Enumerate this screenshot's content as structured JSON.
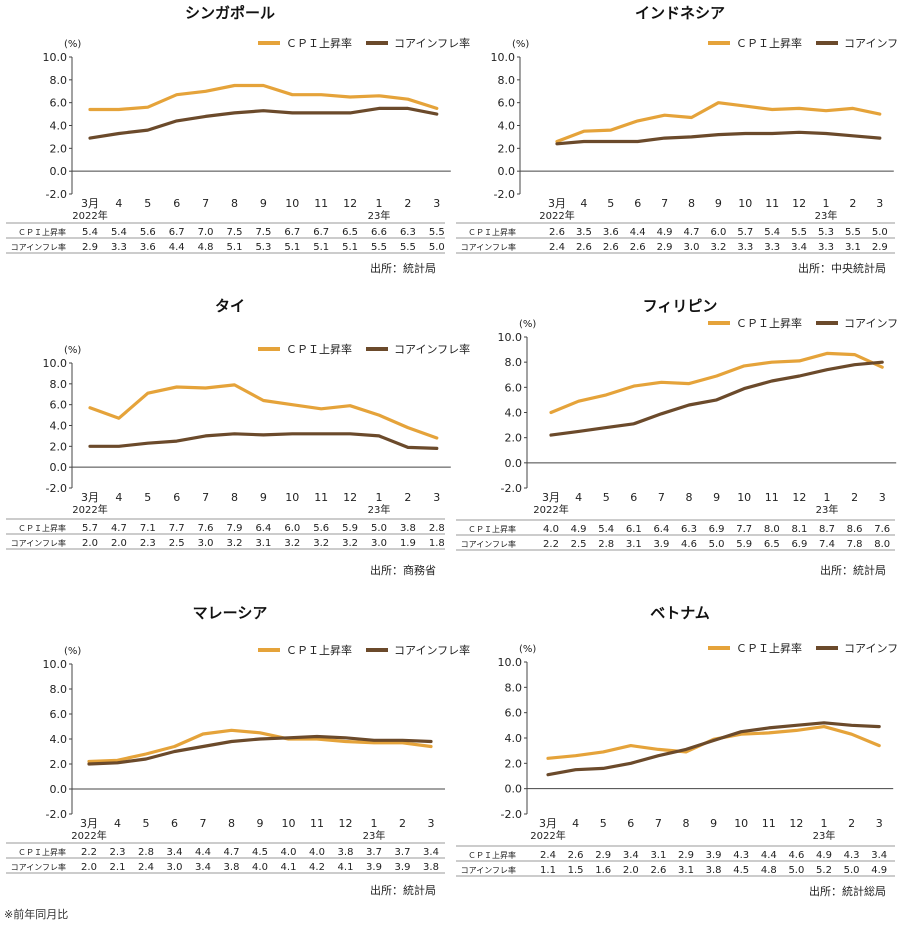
{
  "footnote": "※前年同月比",
  "legend_cpi": "ＣＰＩ上昇率",
  "legend_core": "コアインフレ率",
  "row_label_cpi": "ＣＰＩ上昇率",
  "row_label_core": "コアインフレ率",
  "unit": "(%)",
  "colors": {
    "cpi": "#e5a33a",
    "core": "#6b4a2b",
    "axis": "#444444"
  },
  "chart_data": [
    {
      "type": "line",
      "title": "シンガポール",
      "x": [
        "3月",
        "4",
        "5",
        "6",
        "7",
        "8",
        "9",
        "10",
        "11",
        "12",
        "1",
        "2",
        "3"
      ],
      "x_year_labels": [
        {
          "at": 0,
          "label": "2022年"
        },
        {
          "at": 10,
          "label": "23年"
        }
      ],
      "ylim": [
        -2.0,
        10.0
      ],
      "yticks": [
        "10.0",
        "8.0",
        "6.0",
        "4.0",
        "2.0",
        "0.0",
        "-2.0"
      ],
      "series": [
        {
          "name": "ＣＰＩ上昇率",
          "values": [
            5.4,
            5.4,
            5.6,
            6.7,
            7.0,
            7.5,
            7.5,
            6.7,
            6.7,
            6.5,
            6.6,
            6.3,
            5.5
          ]
        },
        {
          "name": "コアインフレ率",
          "values": [
            2.9,
            3.3,
            3.6,
            4.4,
            4.8,
            5.1,
            5.3,
            5.1,
            5.1,
            5.1,
            5.5,
            5.5,
            5.0
          ]
        }
      ],
      "source": "出所：統計局"
    },
    {
      "type": "line",
      "title": "インドネシア",
      "x": [
        "3月",
        "4",
        "5",
        "6",
        "7",
        "8",
        "9",
        "10",
        "11",
        "12",
        "1",
        "2",
        "3"
      ],
      "x_year_labels": [
        {
          "at": 0,
          "label": "2022年"
        },
        {
          "at": 10,
          "label": "23年"
        }
      ],
      "ylim": [
        -2.0,
        10.0
      ],
      "yticks": [
        "10.0",
        "8.0",
        "6.0",
        "4.0",
        "2.0",
        "0.0",
        "-2.0"
      ],
      "series": [
        {
          "name": "ＣＰＩ上昇率",
          "values": [
            2.6,
            3.5,
            3.6,
            4.4,
            4.9,
            4.7,
            6.0,
            5.7,
            5.4,
            5.5,
            5.3,
            5.5,
            5.0
          ]
        },
        {
          "name": "コアインフレ率",
          "values": [
            2.4,
            2.6,
            2.6,
            2.6,
            2.9,
            3.0,
            3.2,
            3.3,
            3.3,
            3.4,
            3.3,
            3.1,
            2.9
          ]
        }
      ],
      "source": "出所：中央統計局"
    },
    {
      "type": "line",
      "title": "タイ",
      "x": [
        "3月",
        "4",
        "5",
        "6",
        "7",
        "8",
        "9",
        "10",
        "11",
        "12",
        "1",
        "2",
        "3"
      ],
      "x_year_labels": [
        {
          "at": 0,
          "label": "2022年"
        },
        {
          "at": 10,
          "label": "23年"
        }
      ],
      "ylim": [
        -2.0,
        10.0
      ],
      "yticks": [
        "10.0",
        "8.0",
        "6.0",
        "4.0",
        "2.0",
        "0.0",
        "-2.0"
      ],
      "series": [
        {
          "name": "ＣＰＩ上昇率",
          "values": [
            5.7,
            4.7,
            7.1,
            7.7,
            7.6,
            7.9,
            6.4,
            6.0,
            5.6,
            5.9,
            5.0,
            3.8,
            2.8
          ]
        },
        {
          "name": "コアインフレ率",
          "values": [
            2.0,
            2.0,
            2.3,
            2.5,
            3.0,
            3.2,
            3.1,
            3.2,
            3.2,
            3.2,
            3.0,
            1.9,
            1.8
          ]
        }
      ],
      "source": "出所：商務省"
    },
    {
      "type": "line",
      "title": "フィリピン",
      "x": [
        "3月",
        "4",
        "5",
        "6",
        "7",
        "8",
        "9",
        "10",
        "11",
        "12",
        "1",
        "2",
        "3"
      ],
      "x_year_labels": [
        {
          "at": 0,
          "label": "2022年"
        },
        {
          "at": 10,
          "label": "23年"
        }
      ],
      "ylim": [
        -2.0,
        10.0
      ],
      "yticks": [
        "10.0",
        "8.0",
        "6.0",
        "4.0",
        "2.0",
        "0.0",
        "-2.0"
      ],
      "series": [
        {
          "name": "ＣＰＩ上昇率",
          "values": [
            4.0,
            4.9,
            5.4,
            6.1,
            6.4,
            6.3,
            6.9,
            7.7,
            8.0,
            8.1,
            8.7,
            8.6,
            7.6
          ]
        },
        {
          "name": "コアインフレ率",
          "values": [
            2.2,
            2.5,
            2.8,
            3.1,
            3.9,
            4.6,
            5.0,
            5.9,
            6.5,
            6.9,
            7.4,
            7.8,
            8.0
          ]
        }
      ],
      "source": "出所：統計局"
    },
    {
      "type": "line",
      "title": "マレーシア",
      "x": [
        "3月",
        "4",
        "5",
        "6",
        "7",
        "8",
        "9",
        "10",
        "11",
        "12",
        "1",
        "2",
        "3"
      ],
      "x_year_labels": [
        {
          "at": 0,
          "label": "2022年"
        },
        {
          "at": 10,
          "label": "23年"
        }
      ],
      "ylim": [
        -2.0,
        10.0
      ],
      "yticks": [
        "10.0",
        "8.0",
        "6.0",
        "4.0",
        "2.0",
        "0.0",
        "-2.0"
      ],
      "series": [
        {
          "name": "ＣＰＩ上昇率",
          "values": [
            2.2,
            2.3,
            2.8,
            3.4,
            4.4,
            4.7,
            4.5,
            4.0,
            4.0,
            3.8,
            3.7,
            3.7,
            3.4
          ]
        },
        {
          "name": "コアインフレ率",
          "values": [
            2.0,
            2.1,
            2.4,
            3.0,
            3.4,
            3.8,
            4.0,
            4.1,
            4.2,
            4.1,
            3.9,
            3.9,
            3.8
          ]
        }
      ],
      "source": "出所：統計局"
    },
    {
      "type": "line",
      "title": "ベトナム",
      "x": [
        "3月",
        "4",
        "5",
        "6",
        "7",
        "8",
        "9",
        "10",
        "11",
        "12",
        "1",
        "2",
        "3"
      ],
      "x_year_labels": [
        {
          "at": 0,
          "label": "2022年"
        },
        {
          "at": 10,
          "label": "23年"
        }
      ],
      "ylim": [
        -2.0,
        10.0
      ],
      "yticks": [
        "10.0",
        "8.0",
        "6.0",
        "4.0",
        "2.0",
        "0.0",
        "-2.0"
      ],
      "series": [
        {
          "name": "ＣＰＩ上昇率",
          "values": [
            2.4,
            2.6,
            2.9,
            3.4,
            3.1,
            2.9,
            3.9,
            4.3,
            4.4,
            4.6,
            4.9,
            4.3,
            3.4
          ]
        },
        {
          "name": "コアインフレ率",
          "values": [
            1.1,
            1.5,
            1.6,
            2.0,
            2.6,
            3.1,
            3.8,
            4.5,
            4.8,
            5.0,
            5.2,
            5.0,
            4.9
          ]
        }
      ],
      "source": "出所：統計総局"
    }
  ]
}
